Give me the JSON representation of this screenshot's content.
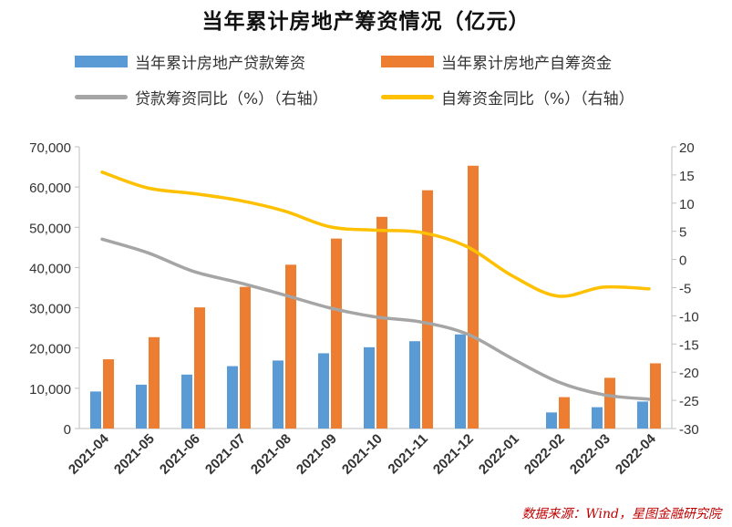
{
  "chart_data": {
    "type": "bar+line",
    "title": "当年累计房地产筹资情况（亿元）",
    "categories": [
      "2021-04",
      "2021-05",
      "2021-06",
      "2021-07",
      "2021-08",
      "2021-09",
      "2021-10",
      "2021-11",
      "2021-12",
      "2022-01",
      "2022-02",
      "2022-03",
      "2022-04"
    ],
    "bar_series": [
      {
        "name": "当年累计房地产贷款筹资",
        "color": "#5b9bd5",
        "axis": "left",
        "values": [
          9200,
          10900,
          13400,
          15500,
          16900,
          18700,
          20200,
          21700,
          23400,
          null,
          4000,
          5300,
          6700
        ]
      },
      {
        "name": "当年累计房地产自筹资金",
        "color": "#ed7d31",
        "axis": "left",
        "values": [
          17200,
          22700,
          30100,
          35200,
          40700,
          47200,
          52600,
          59200,
          65300,
          null,
          7800,
          12600,
          16200
        ]
      }
    ],
    "line_series": [
      {
        "name": "贷款筹资同比（%）（右轴）",
        "color": "#a5a5a5",
        "axis": "right",
        "values": [
          3.6,
          1.2,
          -2.1,
          -4.1,
          -6.3,
          -8.6,
          -10.2,
          -11.1,
          -13.2,
          -17.6,
          -21.7,
          -24.0,
          -24.8
        ]
      },
      {
        "name": "自筹资金同比（%）（右轴）",
        "color": "#ffc000",
        "axis": "right",
        "values": [
          15.5,
          12.7,
          11.7,
          10.5,
          8.6,
          5.8,
          5.2,
          4.8,
          2.3,
          -2.9,
          -6.5,
          -4.9,
          -5.2
        ]
      }
    ],
    "y_left": {
      "min": 0,
      "max": 70000,
      "ticks": [
        0,
        10000,
        20000,
        30000,
        40000,
        50000,
        60000,
        70000
      ],
      "tick_labels": [
        "0",
        "10,000",
        "20,000",
        "30,000",
        "40,000",
        "50,000",
        "60,000",
        "70,000"
      ]
    },
    "y_right": {
      "min": -30,
      "max": 20,
      "ticks": [
        20,
        15,
        10,
        5,
        0,
        -5,
        -10,
        -15,
        -20,
        -25,
        -30
      ],
      "tick_labels": [
        "20",
        "15",
        "10",
        "5",
        "0",
        "-5",
        "-10",
        "-15",
        "-20",
        "-25",
        "-30"
      ]
    },
    "grid": false,
    "legend_position": "top",
    "source_note": "数据来源：Wind，星图金融研究院"
  }
}
